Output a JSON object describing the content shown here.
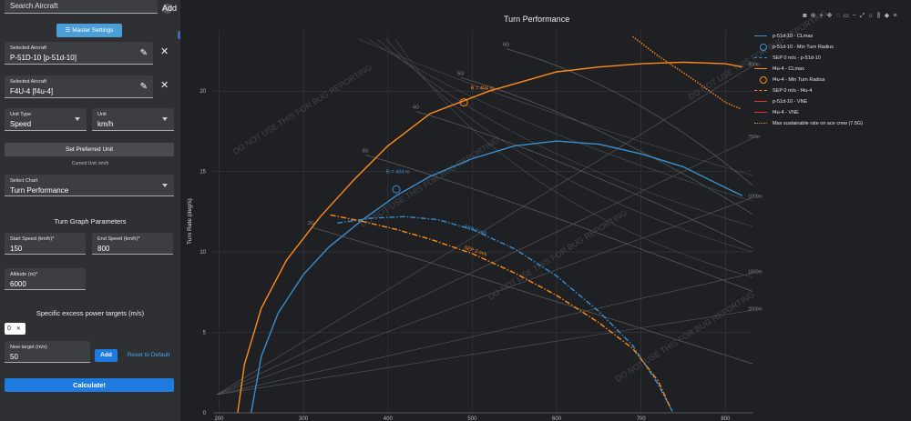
{
  "sidebar": {
    "search": {
      "placeholder": "Search Aircraft"
    },
    "add_label": "Add",
    "master_settings_label": "Master Settings",
    "aircraft_1": {
      "label": "Selected Aircraft",
      "value": "P-51D-10 [p-51d-10]"
    },
    "aircraft_2": {
      "label": "Selected Aircraft",
      "value": "F4U-4 [f4u-4]"
    },
    "unit_type": {
      "label": "Unit Type",
      "value": "Speed"
    },
    "unit": {
      "label": "Unit",
      "value": "km/h"
    },
    "set_preferred_unit_label": "Set Preferred Unit",
    "current_unit_text": "Current Unit: km/h",
    "select_chart": {
      "label": "Select Chart",
      "value": "Turn Performance"
    },
    "turn_graph_params_title": "Turn Graph Parameters",
    "start_speed": {
      "label": "Start Speed (km/h)*",
      "value": "150"
    },
    "end_speed": {
      "label": "End Speed (km/h)*",
      "value": "800"
    },
    "altitude": {
      "label": "Altitude (m)*",
      "value": "6000"
    },
    "sep_title": "Specific excess power targets (m/s)",
    "sep_chip": {
      "value": "0",
      "remove": "✕"
    },
    "new_target": {
      "label": "New target (m/s)",
      "value": "50"
    },
    "reset_label": "Reset to Default",
    "calculate_label": "Calculate!"
  },
  "toolbar_icons": [
    "camera-icon",
    "zoom-icon",
    "zoom-in-icon",
    "pan-icon",
    "lasso-icon",
    "select-icon",
    "zoom-out-icon",
    "autoscale-icon",
    "reset-axes-icon",
    "spike-lines-icon",
    "hover-closest-icon",
    "hover-compare-icon"
  ],
  "watermark": "DO NOT USE THIS FOR BUG REPORTING",
  "chart_data": {
    "type": "line",
    "title": "Turn Performance",
    "xlabel": "",
    "ylabel": "Turn Rate (deg/s)",
    "xlim": [
      193,
      832
    ],
    "ylim": [
      0,
      23.8
    ],
    "xticks": [
      200,
      300,
      400,
      500,
      600,
      700,
      800
    ],
    "yticks": [
      0,
      5,
      10,
      15,
      20
    ],
    "grid": true,
    "g_lines": [
      {
        "label": "2G",
        "x": 316,
        "y": 11.7
      },
      {
        "label": "3G",
        "x": 380,
        "y": 16.2
      },
      {
        "label": "4G",
        "x": 440,
        "y": 18.9
      },
      {
        "label": "5G",
        "x": 493,
        "y": 21.0
      },
      {
        "label": "6G",
        "x": 547,
        "y": 22.8
      }
    ],
    "radius_labels": [
      {
        "label": "800m",
        "x": 827,
        "y": 21.8
      },
      {
        "label": "750m",
        "x": 827,
        "y": 17.3
      },
      {
        "label": "1000m",
        "x": 827,
        "y": 13.6
      },
      {
        "label": "1500m",
        "x": 827,
        "y": 8.9
      },
      {
        "label": "2000m",
        "x": 827,
        "y": 6.6
      }
    ],
    "min_radius_labels": [
      {
        "label": "R = 404 m",
        "x": 498,
        "y": 20.1,
        "color": "#ff8c1a"
      },
      {
        "label": "R = 404 m",
        "x": 398,
        "y": 14.9,
        "color": "#3a8fd0"
      }
    ],
    "sep_labels": [
      {
        "label": "SEP 0 m/s",
        "x": 490,
        "y": 11.5,
        "color": "#3a8fd0"
      },
      {
        "label": "SEP 0 m/s",
        "x": 490,
        "y": 10.2,
        "color": "#ff8c1a"
      }
    ],
    "series": [
      {
        "name": "p-51d-10 - CLmax",
        "color": "#3a8fd0",
        "dash": "solid",
        "points": [
          [
            238,
            0
          ],
          [
            250,
            3.5
          ],
          [
            270,
            6.2
          ],
          [
            300,
            8.6
          ],
          [
            330,
            10.3
          ],
          [
            370,
            12.0
          ],
          [
            410,
            13.5
          ],
          [
            450,
            14.7
          ],
          [
            500,
            15.8
          ],
          [
            550,
            16.6
          ],
          [
            600,
            16.9
          ],
          [
            650,
            16.7
          ],
          [
            700,
            16.1
          ],
          [
            750,
            15.3
          ],
          [
            800,
            14.0
          ],
          [
            820,
            13.5
          ]
        ]
      },
      {
        "name": "p-51d-10 - Min Turn Radius",
        "color": "#3a8fd0",
        "marker": "circle",
        "points": [
          [
            410,
            13.9
          ]
        ]
      },
      {
        "name": "SEP 0 m/s - p-51d-10",
        "color": "#3a8fd0",
        "dash": "dashdot",
        "points": [
          [
            340,
            11.8
          ],
          [
            380,
            12.1
          ],
          [
            420,
            12.2
          ],
          [
            460,
            12.0
          ],
          [
            500,
            11.4
          ],
          [
            550,
            10.2
          ],
          [
            600,
            8.5
          ],
          [
            650,
            6.3
          ],
          [
            690,
            4.2
          ],
          [
            720,
            1.8
          ],
          [
            738,
            0
          ]
        ]
      },
      {
        "name": "f4u-4 - CLmax",
        "color": "#ff8c1a",
        "dash": "solid",
        "points": [
          [
            222,
            0
          ],
          [
            230,
            3.0
          ],
          [
            250,
            6.5
          ],
          [
            280,
            9.5
          ],
          [
            320,
            12.2
          ],
          [
            360,
            14.5
          ],
          [
            400,
            16.6
          ],
          [
            450,
            18.6
          ],
          [
            490,
            19.4
          ],
          [
            520,
            20.0
          ],
          [
            560,
            20.6
          ],
          [
            600,
            21.2
          ],
          [
            650,
            21.5
          ],
          [
            700,
            21.7
          ],
          [
            750,
            21.8
          ],
          [
            800,
            21.7
          ],
          [
            820,
            21.5
          ]
        ]
      },
      {
        "name": "f4u-4 - Min Turn Radius",
        "color": "#ff8c1a",
        "marker": "circle",
        "points": [
          [
            490,
            19.3
          ]
        ]
      },
      {
        "name": "SEP 0 m/s - f4u-4",
        "color": "#ff8c1a",
        "dash": "dashdot",
        "points": [
          [
            332,
            12.3
          ],
          [
            370,
            11.9
          ],
          [
            410,
            11.4
          ],
          [
            450,
            10.8
          ],
          [
            500,
            9.9
          ],
          [
            550,
            8.7
          ],
          [
            600,
            7.3
          ],
          [
            650,
            5.6
          ],
          [
            690,
            4.0
          ],
          [
            720,
            2.0
          ],
          [
            735,
            0.3
          ]
        ]
      },
      {
        "name": "p-51d-10 - VNE",
        "color": "#e83030",
        "dash": "solid",
        "points": []
      },
      {
        "name": "f4u-4 - VNE",
        "color": "#e83030",
        "dash": "solid",
        "points": []
      },
      {
        "name": "Max sustainable rate on ace crew (7.5G)",
        "color": "#ff8c1a",
        "dash": "dotted",
        "points": [
          [
            690,
            23.4
          ],
          [
            720,
            22.2
          ],
          [
            760,
            20.8
          ],
          [
            800,
            19.3
          ],
          [
            818,
            18.9
          ]
        ]
      }
    ]
  }
}
